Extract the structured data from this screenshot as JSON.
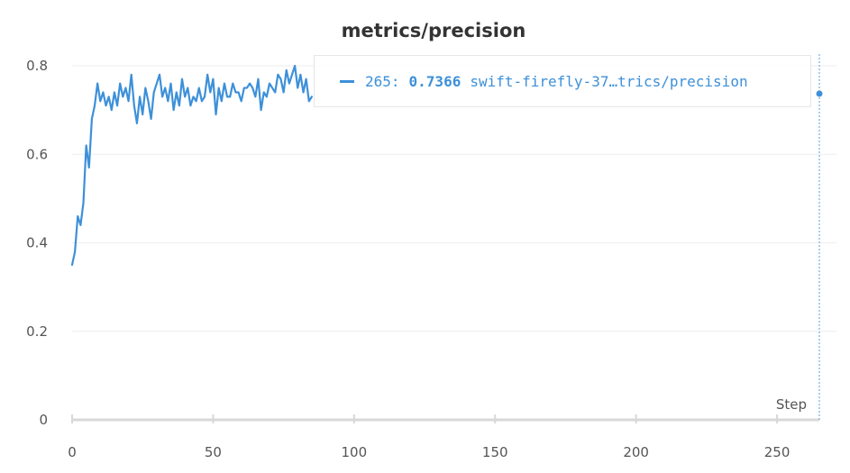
{
  "chart_data": {
    "type": "line",
    "title": "metrics/precision",
    "xlabel": "Step",
    "ylabel": "",
    "xlim": [
      0,
      265
    ],
    "ylim": [
      0,
      0.8
    ],
    "xticks": [
      0,
      50,
      100,
      150,
      200,
      250
    ],
    "yticks": [
      0,
      0.2,
      0.4,
      0.6,
      0.8
    ],
    "ytick_labels": [
      "0",
      "0.2",
      "0.4",
      "0.6",
      "0.8"
    ],
    "grid": true,
    "series": [
      {
        "name": "swift-firefly-37…trics/precision",
        "color": "#3d90d9",
        "values": [
          0.35,
          0.38,
          0.46,
          0.44,
          0.49,
          0.62,
          0.57,
          0.68,
          0.71,
          0.76,
          0.72,
          0.74,
          0.71,
          0.73,
          0.7,
          0.74,
          0.71,
          0.76,
          0.73,
          0.75,
          0.72,
          0.78,
          0.71,
          0.67,
          0.73,
          0.69,
          0.75,
          0.72,
          0.68,
          0.74,
          0.76,
          0.78,
          0.73,
          0.75,
          0.72,
          0.76,
          0.7,
          0.74,
          0.71,
          0.77,
          0.73,
          0.75,
          0.71,
          0.73,
          0.72,
          0.75,
          0.72,
          0.73,
          0.78,
          0.74,
          0.77,
          0.69,
          0.75,
          0.72,
          0.76,
          0.73,
          0.73,
          0.76,
          0.74,
          0.74,
          0.72,
          0.75,
          0.75,
          0.76,
          0.75,
          0.73,
          0.77,
          0.7,
          0.74,
          0.73,
          0.76,
          0.75,
          0.74,
          0.78,
          0.77,
          0.74,
          0.79,
          0.76,
          0.78,
          0.8,
          0.75,
          0.78,
          0.74,
          0.77,
          0.72,
          0.73
        ]
      }
    ],
    "tooltip": {
      "step": "265:",
      "value": "0.7366",
      "series_label": "swift-firefly-37…trics/precision"
    }
  }
}
